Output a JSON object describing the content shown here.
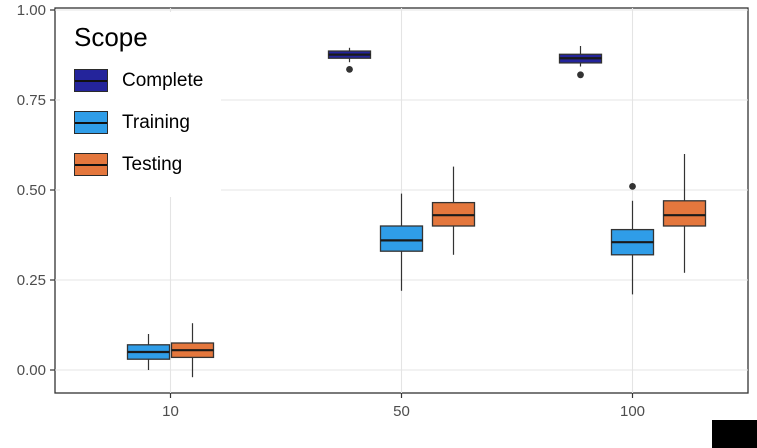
{
  "chart_data": {
    "type": "boxplot",
    "title": "",
    "xlabel": "",
    "ylabel": "",
    "legend_title": "Scope",
    "legend_position": "inside-top-left",
    "grid": true,
    "categories": [
      "10",
      "50",
      "100"
    ],
    "y_ticks": [
      "0.00",
      "0.25",
      "0.50",
      "0.75",
      "1.00"
    ],
    "y_tick_values": [
      0,
      0.25,
      0.5,
      0.75,
      1.0
    ],
    "ylim": [
      -0.06,
      1.01
    ],
    "series": [
      {
        "name": "Complete",
        "color": "#24249b"
      },
      {
        "name": "Training",
        "color": "#2f9de8"
      },
      {
        "name": "Testing",
        "color": "#e4773d"
      }
    ],
    "boxes": [
      {
        "category": "10",
        "series": "Training",
        "low": 0.0,
        "q1": 0.03,
        "median": 0.05,
        "q3": 0.07,
        "high": 0.1,
        "outliers": []
      },
      {
        "category": "10",
        "series": "Testing",
        "low": -0.02,
        "q1": 0.035,
        "median": 0.055,
        "q3": 0.075,
        "high": 0.13,
        "outliers": []
      },
      {
        "category": "50",
        "series": "Complete",
        "low": 0.855,
        "q1": 0.866,
        "median": 0.876,
        "q3": 0.886,
        "high": 0.895,
        "outliers": [
          0.835
        ]
      },
      {
        "category": "50",
        "series": "Training",
        "low": 0.22,
        "q1": 0.33,
        "median": 0.36,
        "q3": 0.4,
        "high": 0.49,
        "outliers": []
      },
      {
        "category": "50",
        "series": "Testing",
        "low": 0.32,
        "q1": 0.4,
        "median": 0.43,
        "q3": 0.465,
        "high": 0.565,
        "outliers": []
      },
      {
        "category": "100",
        "series": "Complete",
        "low": 0.843,
        "q1": 0.853,
        "median": 0.866,
        "q3": 0.877,
        "high": 0.9,
        "outliers": [
          0.82
        ]
      },
      {
        "category": "100",
        "series": "Training",
        "low": 0.21,
        "q1": 0.32,
        "median": 0.355,
        "q3": 0.39,
        "high": 0.47,
        "outliers": [
          0.51
        ]
      },
      {
        "category": "100",
        "series": "Testing",
        "low": 0.27,
        "q1": 0.4,
        "median": 0.43,
        "q3": 0.47,
        "high": 0.6,
        "outliers": []
      }
    ],
    "colors": {
      "grid": "#e4e4e4",
      "panel_border": "#333333",
      "axis_text": "#4d4d4d",
      "box_stroke": "#333333",
      "median": "#1a1a1a",
      "outlier": "#333333",
      "panel_background": "#ffffff"
    }
  }
}
